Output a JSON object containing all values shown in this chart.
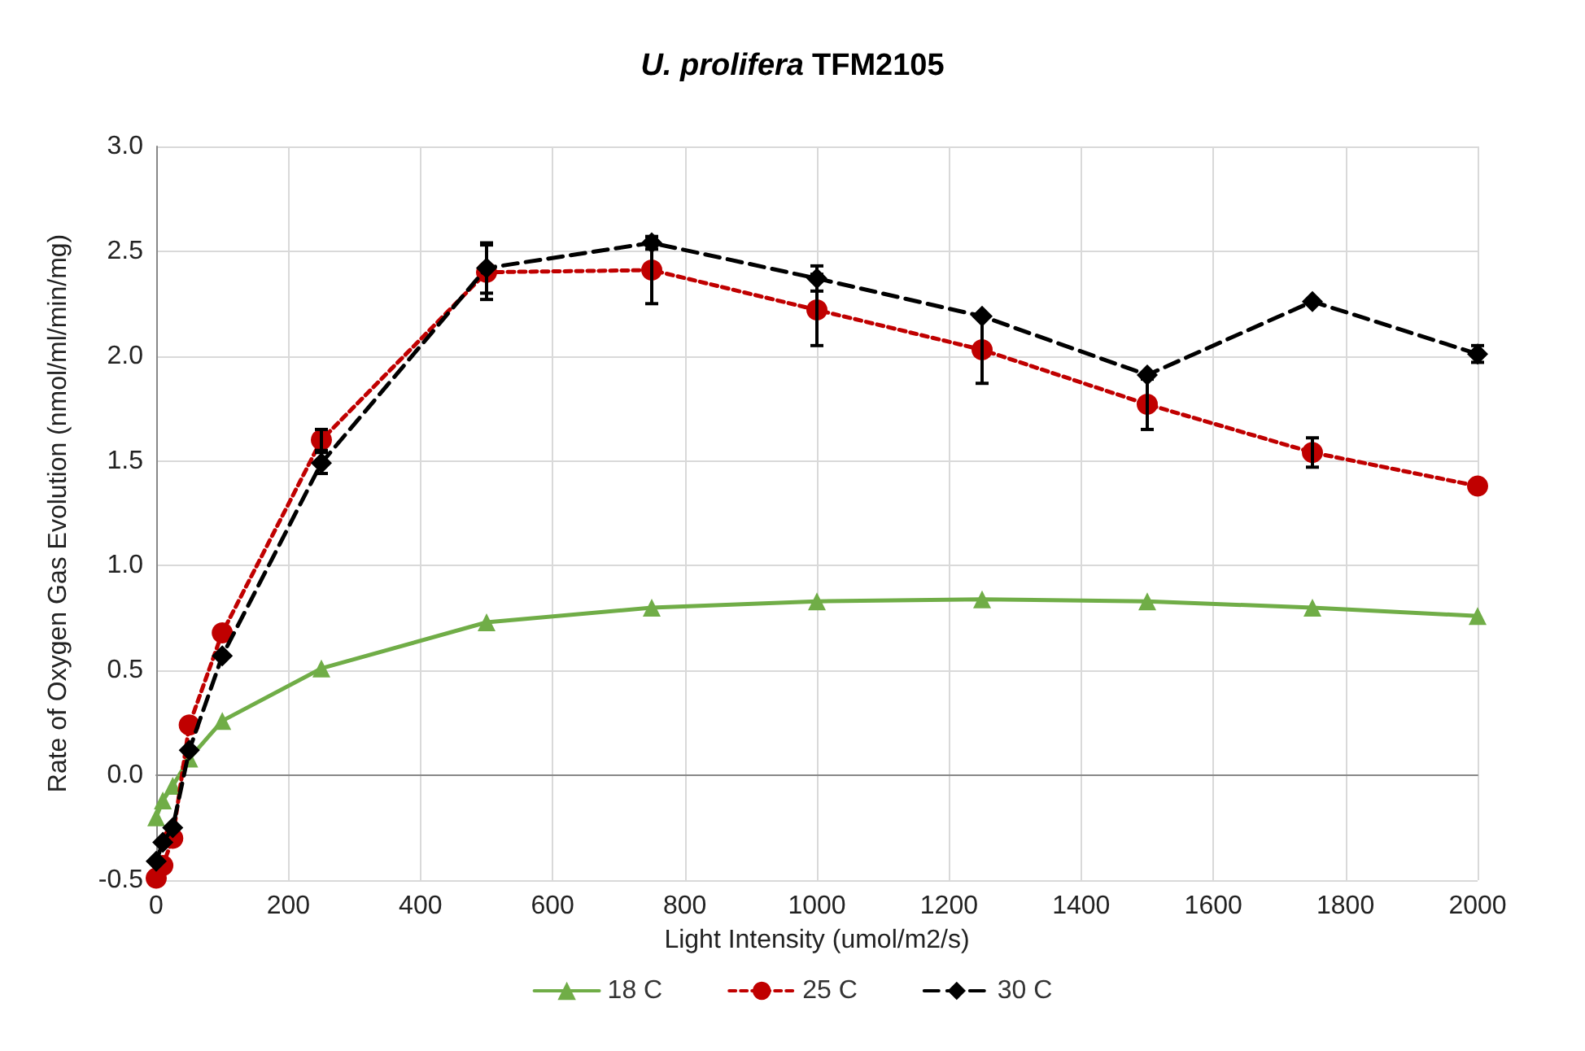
{
  "chart_data": {
    "type": "line",
    "title": "U. prolifera TFM2105",
    "xlabel": "Light Intensity (umol/m2/s)",
    "ylabel": "Rate of Oxygen Gas Evolution (nmol/ml/min/mg)",
    "x": [
      0,
      10,
      25,
      50,
      100,
      250,
      500,
      750,
      1000,
      1250,
      1500,
      1750,
      2000
    ],
    "series": [
      {
        "name": "18 C",
        "color": "#70ad47",
        "marker": "triangle",
        "line_style": "solid",
        "values": [
          -0.2,
          -0.12,
          -0.05,
          0.08,
          0.26,
          0.51,
          0.73,
          0.8,
          0.83,
          0.84,
          0.83,
          0.8,
          0.76
        ]
      },
      {
        "name": "25 C",
        "color": "#c00000",
        "marker": "circle",
        "line_style": "dotted",
        "values": [
          -0.49,
          -0.43,
          -0.3,
          0.24,
          0.68,
          1.6,
          2.4,
          2.41,
          2.22,
          2.03,
          1.77,
          1.54,
          1.38
        ],
        "errors": [
          null,
          null,
          null,
          null,
          null,
          0.05,
          0.13,
          0.16,
          0.17,
          0.16,
          0.12,
          0.07,
          null
        ]
      },
      {
        "name": "30 C",
        "color": "#000000",
        "marker": "diamond",
        "line_style": "dashed",
        "values": [
          -0.41,
          -0.32,
          -0.25,
          0.12,
          0.57,
          1.49,
          2.42,
          2.54,
          2.37,
          2.19,
          1.91,
          2.26,
          2.01
        ],
        "errors": [
          null,
          null,
          null,
          null,
          null,
          0.05,
          0.12,
          0.03,
          0.06,
          null,
          null,
          null,
          0.04
        ]
      }
    ],
    "xlim": [
      0,
      2000
    ],
    "xticks": [
      0,
      200,
      400,
      600,
      800,
      1000,
      1200,
      1400,
      1600,
      1800,
      2000
    ],
    "ylim": [
      -0.5,
      3
    ],
    "yticks": [
      -0.5,
      {
        "value": 0,
        "label": "0.0"
      },
      0.5,
      {
        "value": 1,
        "label": "1.0"
      },
      1.5,
      {
        "value": 2,
        "label": "2.0"
      },
      2.5,
      {
        "value": 3,
        "label": "3.0"
      }
    ],
    "grid": true,
    "legend": "bottom"
  }
}
